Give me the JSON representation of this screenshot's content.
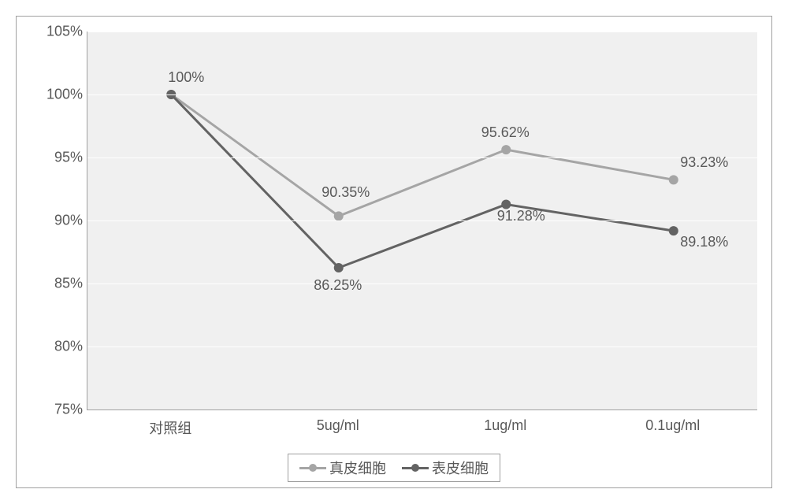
{
  "chart": {
    "type": "line",
    "background_color": "#ffffff",
    "plot_background_color": "#f0f0f0",
    "grid_color": "#ffffff",
    "border_color": "#a0a0a0",
    "text_color": "#595959",
    "label_fontsize": 18,
    "ylim": [
      75,
      105
    ],
    "ytick_step": 5,
    "y_ticks": [
      "75%",
      "80%",
      "85%",
      "90%",
      "95%",
      "100%",
      "105%"
    ],
    "categories": [
      "对照组",
      "5ug/ml",
      "1ug/ml",
      "0.1ug/ml"
    ],
    "series": [
      {
        "name": "真皮细胞",
        "color": "#a5a5a5",
        "line_width": 3,
        "marker_size": 12,
        "values": [
          100,
          90.35,
          95.62,
          93.23
        ],
        "labels": [
          "100%",
          "90.35%",
          "95.62%",
          "93.23%"
        ],
        "label_dx": [
          20,
          10,
          0,
          40
        ],
        "label_dy": [
          -22,
          -30,
          -22,
          -22
        ]
      },
      {
        "name": "表皮细胞",
        "color": "#636363",
        "line_width": 3,
        "marker_size": 12,
        "values": [
          100,
          86.25,
          91.28,
          89.18
        ],
        "labels": [
          "",
          "86.25%",
          "91.28%",
          "89.18%"
        ],
        "label_dx": [
          0,
          0,
          20,
          40
        ],
        "label_dy": [
          0,
          22,
          14,
          14
        ]
      }
    ]
  }
}
